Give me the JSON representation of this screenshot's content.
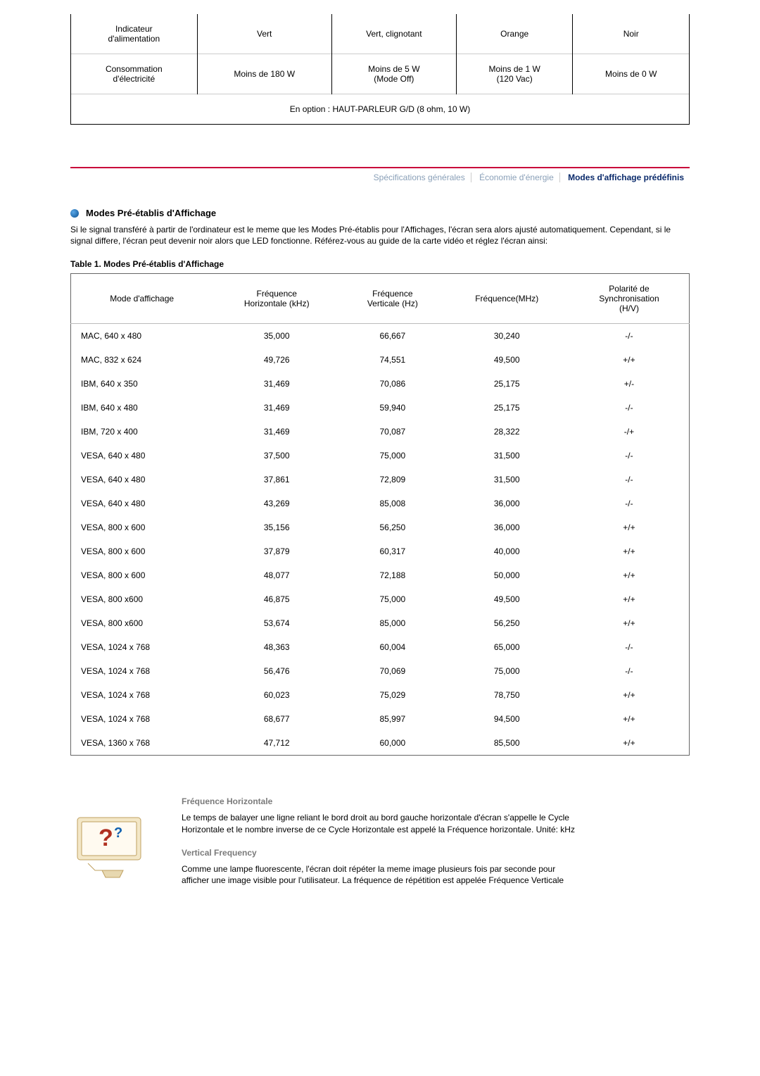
{
  "power": {
    "rows": [
      {
        "label": "Indicateur\nd'alimentation",
        "c1": "Vert",
        "c2": "Vert, clignotant",
        "c3": "Orange",
        "c4": "Noir"
      },
      {
        "label": "Consommation\nd'électricité",
        "c1": "Moins de 180 W",
        "c2": "Moins de 5 W\n(Mode Off)",
        "c3": "Moins de 1 W\n(120 Vac)",
        "c4": "Moins de 0 W"
      }
    ],
    "footer": "En option : HAUT-PARLEUR G/D (8 ohm, 10 W)"
  },
  "tabs": {
    "t1": "Spécifications générales",
    "t2": "Économie d'énergie",
    "t3": "Modes d'affichage prédéfinis"
  },
  "section_title": "Modes Pré-établis d'Affichage",
  "intro": "Si le signal transféré à partir de l'ordinateur est le meme que les Modes Pré-établis pour l'Affichages, l'écran sera alors ajusté automatiquement. Cependant, si le signal differe, l'écran peut devenir noir alors que LED fonctionne. Référez-vous au guide de la carte vidéo et réglez l'écran ainsi:",
  "table_caption": "Table 1. Modes Pré-établis d'Affichage",
  "modes": {
    "headers": {
      "h1": "Mode d'affichage",
      "h2": "Fréquence\nHorizontale (kHz)",
      "h3": "Fréquence\nVerticale (Hz)",
      "h4": "Fréquence(MHz)",
      "h5": "Polarité de\nSynchronisation\n(H/V)"
    },
    "rows": [
      {
        "m": "MAC, 640 x 480",
        "fh": "35,000",
        "fv": "66,667",
        "fm": "30,240",
        "p": "-/-"
      },
      {
        "m": "MAC, 832 x 624",
        "fh": "49,726",
        "fv": "74,551",
        "fm": "49,500",
        "p": "+/+"
      },
      {
        "m": "IBM, 640 x 350",
        "fh": "31,469",
        "fv": "70,086",
        "fm": "25,175",
        "p": "+/-"
      },
      {
        "m": "IBM, 640 x 480",
        "fh": "31,469",
        "fv": "59,940",
        "fm": "25,175",
        "p": "-/-"
      },
      {
        "m": "IBM, 720 x 400",
        "fh": "31,469",
        "fv": "70,087",
        "fm": "28,322",
        "p": "-/+"
      },
      {
        "m": "VESA, 640 x 480",
        "fh": "37,500",
        "fv": "75,000",
        "fm": "31,500",
        "p": "-/-"
      },
      {
        "m": "VESA, 640 x 480",
        "fh": "37,861",
        "fv": "72,809",
        "fm": "31,500",
        "p": "-/-"
      },
      {
        "m": "VESA, 640 x 480",
        "fh": "43,269",
        "fv": "85,008",
        "fm": "36,000",
        "p": "-/-"
      },
      {
        "m": "VESA, 800 x 600",
        "fh": "35,156",
        "fv": "56,250",
        "fm": "36,000",
        "p": "+/+"
      },
      {
        "m": "VESA, 800 x 600",
        "fh": "37,879",
        "fv": "60,317",
        "fm": "40,000",
        "p": "+/+"
      },
      {
        "m": "VESA, 800 x 600",
        "fh": "48,077",
        "fv": "72,188",
        "fm": "50,000",
        "p": "+/+"
      },
      {
        "m": "VESA, 800 x600",
        "fh": "46,875",
        "fv": "75,000",
        "fm": "49,500",
        "p": "+/+"
      },
      {
        "m": "VESA, 800 x600",
        "fh": "53,674",
        "fv": "85,000",
        "fm": "56,250",
        "p": "+/+"
      },
      {
        "m": "VESA, 1024 x 768",
        "fh": "48,363",
        "fv": "60,004",
        "fm": "65,000",
        "p": "-/-"
      },
      {
        "m": "VESA, 1024 x 768",
        "fh": "56,476",
        "fv": "70,069",
        "fm": "75,000",
        "p": "-/-"
      },
      {
        "m": "VESA, 1024 x 768",
        "fh": "60,023",
        "fv": "75,029",
        "fm": "78,750",
        "p": "+/+"
      },
      {
        "m": "VESA, 1024 x 768",
        "fh": "68,677",
        "fv": "85,997",
        "fm": "94,500",
        "p": "+/+"
      },
      {
        "m": "VESA, 1360 x 768",
        "fh": "47,712",
        "fv": "60,000",
        "fm": "85,500",
        "p": "+/+"
      }
    ]
  },
  "defs": {
    "h1": "Fréquence Horizontale",
    "p1": "Le temps de balayer une ligne reliant le bord droit au bord gauche horizontale d'écran s'appelle le Cycle Horizontale et le nombre inverse de ce Cycle Horizontale est appelé la Fréquence horizontale. Unité: kHz",
    "h2": "Vertical Frequency",
    "p2": "Comme une lampe fluorescente, l'écran doit répéter la meme image plusieurs fois par seconde pour afficher une image visible pour l'utilisateur. La fréquence de répétition est appelée Fréquence Verticale"
  }
}
